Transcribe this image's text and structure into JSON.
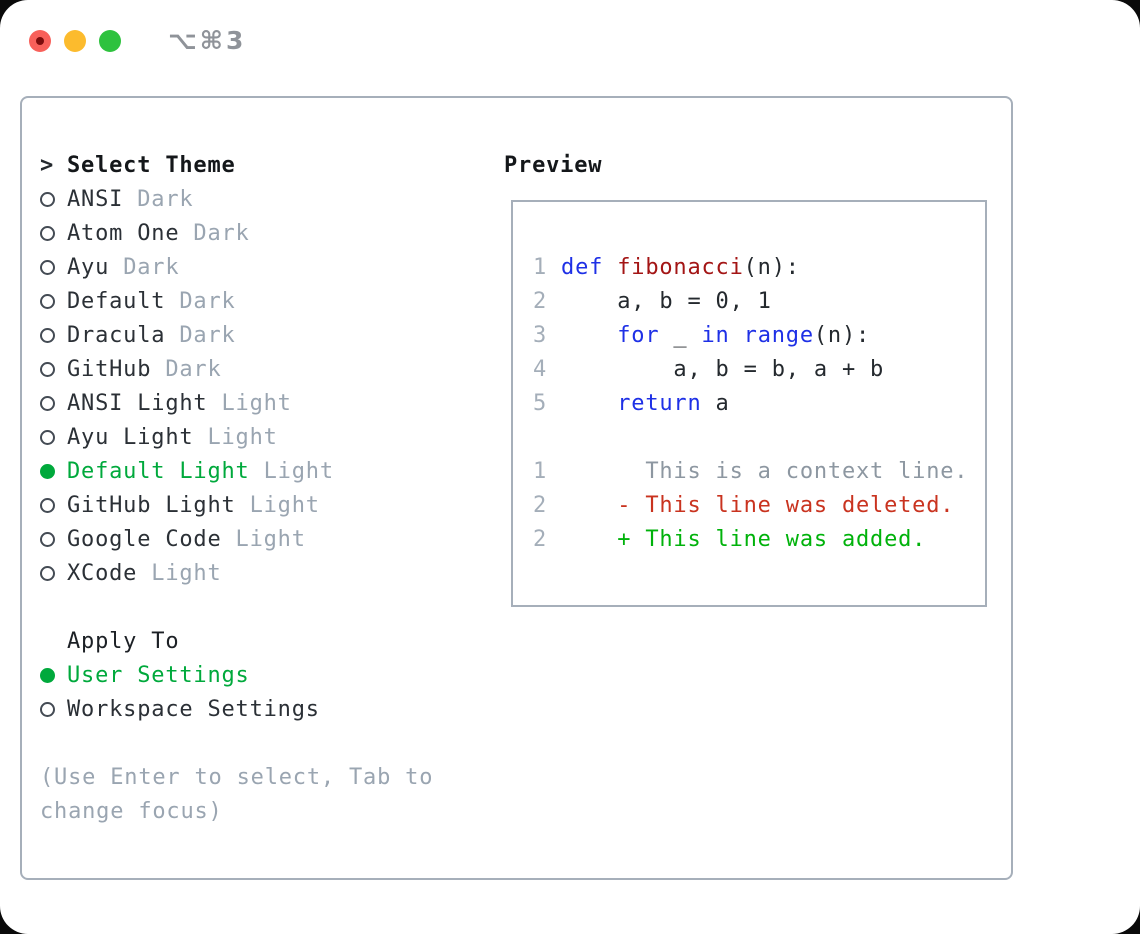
{
  "window": {
    "title": "⌥⌘3"
  },
  "colors": {
    "selection_green": "#00a93c",
    "added_green": "#00b20b",
    "deleted_red": "#c9331f",
    "keyword_blue": "#1e30e6",
    "function_red": "#a31515",
    "muted_gray": "#9aa5b1",
    "border_gray": "#a6afba",
    "traffic_close": "#f8605a",
    "traffic_minimize": "#fcbb2d",
    "traffic_zoom": "#2ec23e"
  },
  "left": {
    "prompt": ">",
    "title": "Select Theme",
    "themes": [
      {
        "name": "ANSI",
        "variant": "Dark",
        "selected": false
      },
      {
        "name": "Atom One",
        "variant": "Dark",
        "selected": false
      },
      {
        "name": "Ayu",
        "variant": "Dark",
        "selected": false
      },
      {
        "name": "Default",
        "variant": "Dark",
        "selected": false
      },
      {
        "name": "Dracula",
        "variant": "Dark",
        "selected": false
      },
      {
        "name": "GitHub",
        "variant": "Dark",
        "selected": false
      },
      {
        "name": "ANSI Light",
        "variant": "Light",
        "selected": false
      },
      {
        "name": "Ayu Light",
        "variant": "Light",
        "selected": false
      },
      {
        "name": "Default Light",
        "variant": "Light",
        "selected": true
      },
      {
        "name": "GitHub Light",
        "variant": "Light",
        "selected": false
      },
      {
        "name": "Google Code",
        "variant": "Light",
        "selected": false
      },
      {
        "name": "XCode",
        "variant": "Light",
        "selected": false
      }
    ],
    "apply_to": {
      "title": "Apply To",
      "options": [
        {
          "label": "User Settings",
          "selected": true
        },
        {
          "label": "Workspace Settings",
          "selected": false
        }
      ]
    },
    "hint_lines": [
      "(Use Enter to select, Tab to",
      "change focus)"
    ]
  },
  "preview": {
    "title": "Preview",
    "code_lines": [
      {
        "num": "1",
        "segments": [
          {
            "t": "def",
            "c": "kw"
          },
          {
            "t": " ",
            "c": "pl"
          },
          {
            "t": "fibonacci",
            "c": "fn"
          },
          {
            "t": "(n):",
            "c": "pl"
          }
        ]
      },
      {
        "num": "2",
        "segments": [
          {
            "t": "    a, b = 0, 1",
            "c": "pl"
          }
        ]
      },
      {
        "num": "3",
        "segments": [
          {
            "t": "    ",
            "c": "pl"
          },
          {
            "t": "for",
            "c": "kw"
          },
          {
            "t": " _ ",
            "c": "pl"
          },
          {
            "t": "in",
            "c": "kw"
          },
          {
            "t": " ",
            "c": "pl"
          },
          {
            "t": "range",
            "c": "kw"
          },
          {
            "t": "(n):",
            "c": "pl"
          }
        ]
      },
      {
        "num": "4",
        "segments": [
          {
            "t": "        a, b = b, a + b",
            "c": "pl"
          }
        ]
      },
      {
        "num": "5",
        "segments": [
          {
            "t": "    ",
            "c": "pl"
          },
          {
            "t": "return",
            "c": "kw"
          },
          {
            "t": " a",
            "c": "pl"
          }
        ]
      },
      {
        "num": "",
        "segments": []
      },
      {
        "num": "1",
        "segments": [
          {
            "t": "      This is a context line.",
            "c": "ctx"
          }
        ]
      },
      {
        "num": "2",
        "segments": [
          {
            "t": "    - This line was deleted.",
            "c": "del"
          }
        ]
      },
      {
        "num": "2",
        "segments": [
          {
            "t": "    + This line was added.",
            "c": "add"
          }
        ]
      }
    ]
  }
}
